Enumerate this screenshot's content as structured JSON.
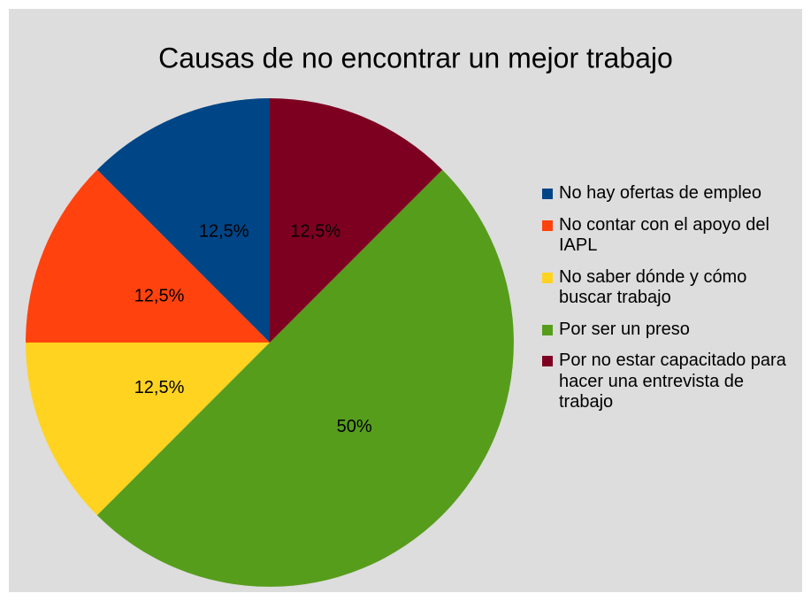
{
  "chart_data": {
    "type": "pie",
    "title": "Causas de no encontrar un mejor trabajo",
    "categories": [
      "No hay ofertas de empleo",
      "No contar con el apoyo del IAPL",
      "No saber dónde y cómo buscar trabajo",
      "Por ser un preso",
      "Por no estar capacitado para hacer una entrevista de trabajo"
    ],
    "values": [
      12.5,
      12.5,
      12.5,
      50,
      12.5
    ],
    "value_labels": [
      "12,5%",
      "12,5%",
      "12,5%",
      "50%",
      "12,5%"
    ],
    "colors": [
      "#004586",
      "#ff420e",
      "#ffd320",
      "#579d1c",
      "#7e0021"
    ],
    "legend": "right"
  }
}
